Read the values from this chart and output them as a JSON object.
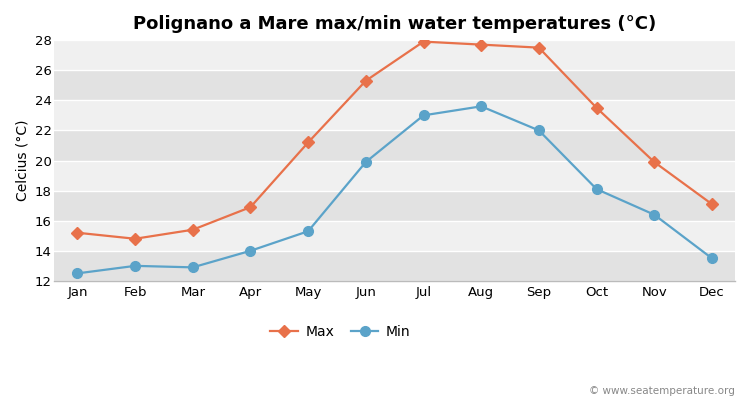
{
  "title": "Polignano a Mare max/min water temperatures (°C)",
  "ylabel": "Celcius (°C)",
  "months": [
    "Jan",
    "Feb",
    "Mar",
    "Apr",
    "May",
    "Jun",
    "Jul",
    "Aug",
    "Sep",
    "Oct",
    "Nov",
    "Dec"
  ],
  "max_temps": [
    15.2,
    14.8,
    15.4,
    16.9,
    21.2,
    25.3,
    27.9,
    27.7,
    27.5,
    23.5,
    19.9,
    17.1
  ],
  "min_temps": [
    12.5,
    13.0,
    12.9,
    14.0,
    15.3,
    19.9,
    23.0,
    23.6,
    22.0,
    18.1,
    16.4,
    13.5
  ],
  "max_color": "#E8714A",
  "min_color": "#5BA3C9",
  "outer_bg": "#FFFFFF",
  "band_light": "#F0F0F0",
  "band_dark": "#E2E2E2",
  "ylim": [
    12,
    28
  ],
  "yticks": [
    12,
    14,
    16,
    18,
    20,
    22,
    24,
    26,
    28
  ],
  "watermark": "© www.seatemperature.org",
  "title_fontsize": 13,
  "axis_label_fontsize": 10,
  "tick_fontsize": 9.5,
  "legend_fontsize": 10,
  "max_marker": "D",
  "min_marker": "o",
  "linewidth": 1.6,
  "markersize_max": 6,
  "markersize_min": 7
}
